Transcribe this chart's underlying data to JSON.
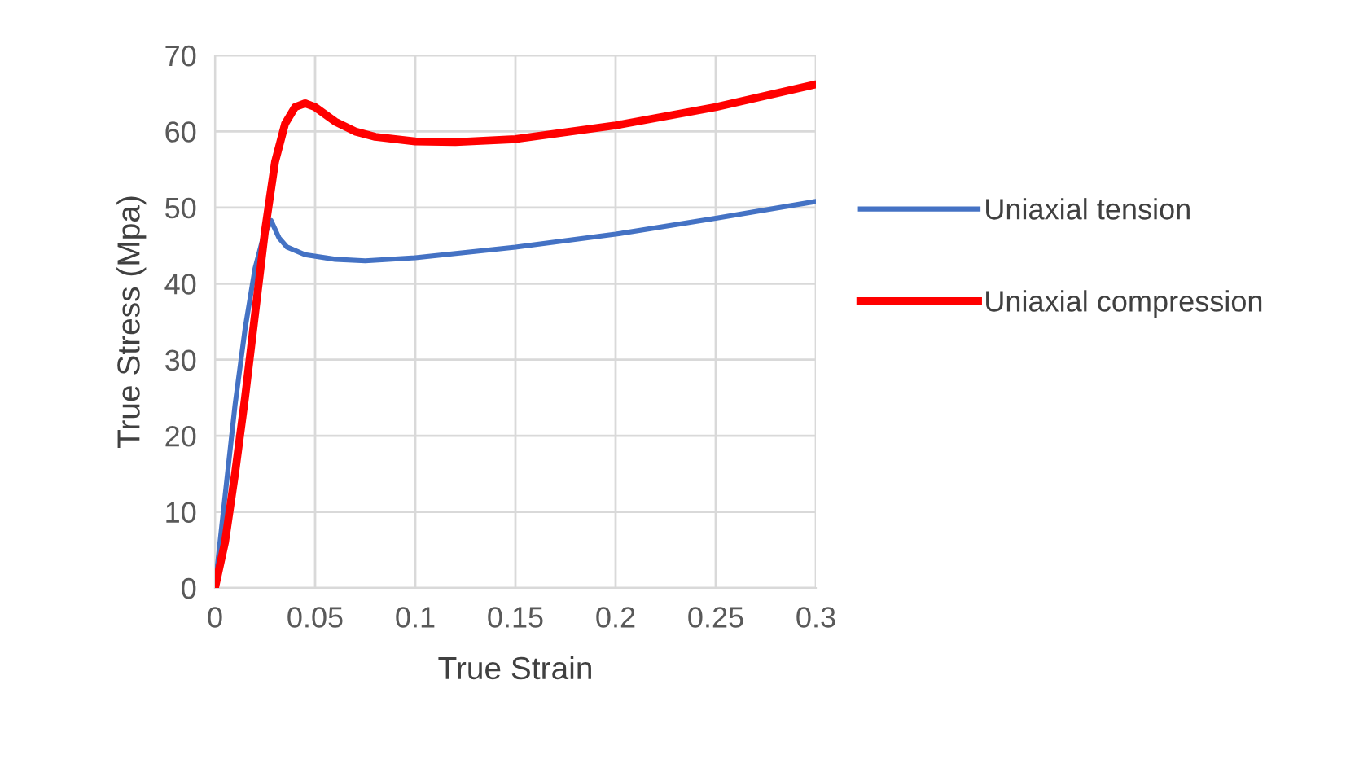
{
  "chart_data": {
    "type": "line",
    "xlabel": "True Strain",
    "ylabel": "True Stress (Mpa)",
    "xlim": [
      0,
      0.3
    ],
    "xticks": [
      0,
      0.05,
      0.1,
      0.15,
      0.2,
      0.25,
      0.3
    ],
    "ylim": [
      0,
      70
    ],
    "yticks": [
      0,
      10,
      20,
      30,
      40,
      50,
      60,
      70
    ],
    "grid": true,
    "legend": "right",
    "marker": "none",
    "line_style": "solid",
    "series": [
      {
        "name": "Uniaxial tension",
        "color": "#4472c4",
        "x": [
          0,
          0.005,
          0.01,
          0.015,
          0.02,
          0.024,
          0.028,
          0.032,
          0.036,
          0.045,
          0.06,
          0.075,
          0.1,
          0.15,
          0.2,
          0.25,
          0.3
        ],
        "values": [
          0,
          12,
          24,
          34,
          42,
          46,
          48.3,
          46,
          44.8,
          43.8,
          43.2,
          43.0,
          43.4,
          44.8,
          46.5,
          48.6,
          50.8
        ]
      },
      {
        "name": "Uniaxial compression",
        "color": "#ff0000",
        "x": [
          0,
          0.005,
          0.01,
          0.015,
          0.02,
          0.025,
          0.03,
          0.035,
          0.04,
          0.045,
          0.05,
          0.06,
          0.07,
          0.08,
          0.1,
          0.12,
          0.15,
          0.2,
          0.25,
          0.3
        ],
        "values": [
          0,
          6,
          15,
          25,
          36,
          47,
          56,
          61,
          63.2,
          63.7,
          63.2,
          61.3,
          60.0,
          59.3,
          58.7,
          58.6,
          59.0,
          60.8,
          63.2,
          66.2
        ]
      }
    ]
  }
}
